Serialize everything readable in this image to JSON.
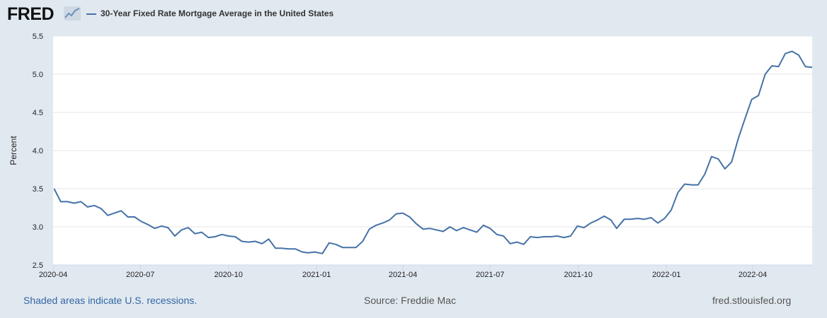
{
  "header": {
    "logo_text": "FRED",
    "legend_label": "30-Year Fixed Rate Mortgage Average in the United States",
    "series_color": "#4572a7"
  },
  "footer": {
    "recession_note": "Shaded areas indicate U.S. recessions.",
    "source": "Source: Freddie Mac",
    "site": "fred.stlouisfed.org"
  },
  "chart_data": {
    "type": "line",
    "title": "",
    "xlabel": "",
    "ylabel": "Percent",
    "ylim": [
      2.5,
      5.5
    ],
    "yticks": [
      "2.5",
      "3.0",
      "3.5",
      "4.0",
      "4.5",
      "5.0",
      "5.5"
    ],
    "xticks": [
      "2020-04",
      "2020-07",
      "2020-10",
      "2021-01",
      "2021-04",
      "2021-07",
      "2021-10",
      "2022-01",
      "2022-04"
    ],
    "grid": true,
    "legend_position": "top",
    "series": [
      {
        "name": "30-Year Fixed Rate Mortgage Average in the United States",
        "x": [
          "2020-04-02",
          "2020-04-09",
          "2020-04-16",
          "2020-04-23",
          "2020-04-30",
          "2020-05-07",
          "2020-05-14",
          "2020-05-21",
          "2020-05-28",
          "2020-06-04",
          "2020-06-11",
          "2020-06-18",
          "2020-06-25",
          "2020-07-02",
          "2020-07-09",
          "2020-07-16",
          "2020-07-23",
          "2020-07-30",
          "2020-08-06",
          "2020-08-13",
          "2020-08-20",
          "2020-08-27",
          "2020-09-03",
          "2020-09-10",
          "2020-09-17",
          "2020-09-24",
          "2020-10-01",
          "2020-10-08",
          "2020-10-15",
          "2020-10-22",
          "2020-10-29",
          "2020-11-05",
          "2020-11-12",
          "2020-11-19",
          "2020-11-25",
          "2020-12-03",
          "2020-12-10",
          "2020-12-17",
          "2020-12-23",
          "2020-12-30",
          "2021-01-07",
          "2021-01-14",
          "2021-01-21",
          "2021-01-28",
          "2021-02-04",
          "2021-02-11",
          "2021-02-18",
          "2021-02-25",
          "2021-03-04",
          "2021-03-11",
          "2021-03-18",
          "2021-03-25",
          "2021-04-01",
          "2021-04-08",
          "2021-04-15",
          "2021-04-22",
          "2021-04-29",
          "2021-05-06",
          "2021-05-13",
          "2021-05-20",
          "2021-05-27",
          "2021-06-03",
          "2021-06-10",
          "2021-06-17",
          "2021-06-24",
          "2021-07-01",
          "2021-07-08",
          "2021-07-15",
          "2021-07-22",
          "2021-07-29",
          "2021-08-05",
          "2021-08-12",
          "2021-08-19",
          "2021-08-26",
          "2021-09-02",
          "2021-09-09",
          "2021-09-16",
          "2021-09-23",
          "2021-09-30",
          "2021-10-07",
          "2021-10-14",
          "2021-10-21",
          "2021-10-28",
          "2021-11-04",
          "2021-11-10",
          "2021-11-18",
          "2021-11-24",
          "2021-12-02",
          "2021-12-09",
          "2021-12-16",
          "2021-12-23",
          "2021-12-30",
          "2022-01-06",
          "2022-01-13",
          "2022-01-20",
          "2022-01-27",
          "2022-02-03",
          "2022-02-10",
          "2022-02-17",
          "2022-02-24",
          "2022-03-03",
          "2022-03-10",
          "2022-03-17",
          "2022-03-24",
          "2022-03-31",
          "2022-04-07",
          "2022-04-14",
          "2022-04-21",
          "2022-04-28",
          "2022-05-05",
          "2022-05-12",
          "2022-05-19",
          "2022-05-26",
          "2022-06-02"
        ],
        "values": [
          3.5,
          3.33,
          3.33,
          3.31,
          3.33,
          3.26,
          3.28,
          3.24,
          3.15,
          3.18,
          3.21,
          3.13,
          3.13,
          3.07,
          3.03,
          2.98,
          3.01,
          2.99,
          2.88,
          2.96,
          2.99,
          2.91,
          2.93,
          2.86,
          2.87,
          2.9,
          2.88,
          2.87,
          2.81,
          2.8,
          2.81,
          2.78,
          2.84,
          2.72,
          2.72,
          2.71,
          2.71,
          2.67,
          2.66,
          2.67,
          2.65,
          2.79,
          2.77,
          2.73,
          2.73,
          2.73,
          2.81,
          2.97,
          3.02,
          3.05,
          3.09,
          3.17,
          3.18,
          3.13,
          3.04,
          2.97,
          2.98,
          2.96,
          2.94,
          3.0,
          2.95,
          2.99,
          2.96,
          2.93,
          3.02,
          2.98,
          2.9,
          2.88,
          2.78,
          2.8,
          2.77,
          2.87,
          2.86,
          2.87,
          2.87,
          2.88,
          2.86,
          2.88,
          3.01,
          2.99,
          3.05,
          3.09,
          3.14,
          3.09,
          2.98,
          3.1,
          3.1,
          3.11,
          3.1,
          3.12,
          3.05,
          3.11,
          3.22,
          3.45,
          3.56,
          3.55,
          3.55,
          3.69,
          3.92,
          3.89,
          3.76,
          3.85,
          4.16,
          4.42,
          4.67,
          4.72,
          5.0,
          5.11,
          5.1,
          5.27,
          5.3,
          5.25,
          5.1,
          5.09
        ]
      }
    ]
  }
}
